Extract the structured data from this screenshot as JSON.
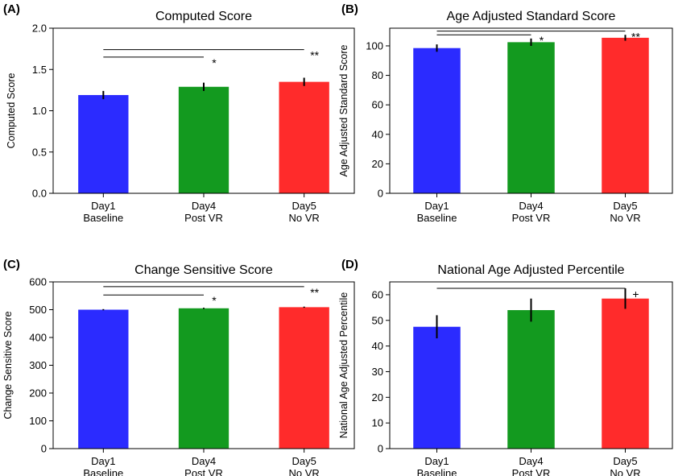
{
  "colors": {
    "bar1": "#2b2bff",
    "bar2": "#139a1f",
    "bar3": "#ff2b2b"
  },
  "chart_data": [
    {
      "type": "bar",
      "panel": "(A)",
      "title": "Computed Score",
      "ylabel": "Computed Score",
      "categories": [
        [
          "Day1",
          "Baseline"
        ],
        [
          "Day4",
          "Post VR"
        ],
        [
          "Day5",
          "No VR"
        ]
      ],
      "values": [
        1.19,
        1.29,
        1.35
      ],
      "errors": [
        0.05,
        0.05,
        0.05
      ],
      "ylim": [
        0,
        2.0
      ],
      "yticks": [
        "0.0",
        "0.5",
        "1.0",
        "1.5",
        "2.0"
      ],
      "significance": [
        {
          "from": 0,
          "to": 1,
          "y": 1.65,
          "label": "*"
        },
        {
          "from": 0,
          "to": 2,
          "y": 1.74,
          "label": "**"
        }
      ]
    },
    {
      "type": "bar",
      "panel": "(B)",
      "title": "Age Adjusted Standard Score",
      "ylabel": "Age Adjusted Standard Score",
      "categories": [
        [
          "Day1",
          "Baseline"
        ],
        [
          "Day4",
          "Post VR"
        ],
        [
          "Day5",
          "No VR"
        ]
      ],
      "values": [
        98.5,
        102.5,
        105.5
      ],
      "errors": [
        2.5,
        2.5,
        2.0
      ],
      "ylim": [
        0,
        112
      ],
      "yticks": [
        "0",
        "20",
        "40",
        "60",
        "80",
        "100"
      ],
      "significance": [
        {
          "from": 0,
          "to": 1,
          "y": 107.5,
          "label": "*"
        },
        {
          "from": 0,
          "to": 2,
          "y": 110,
          "label": "**"
        }
      ]
    },
    {
      "type": "bar",
      "panel": "(C)",
      "title": "Change Sensitive Score",
      "ylabel": "Change Sensitive Score",
      "categories": [
        [
          "Day1",
          "Baseline"
        ],
        [
          "Day4",
          "Post VR"
        ],
        [
          "Day5",
          "No VR"
        ]
      ],
      "values": [
        500,
        505,
        509
      ],
      "errors": [
        2,
        2,
        2
      ],
      "ylim": [
        0,
        600
      ],
      "yticks": [
        "0",
        "100",
        "200",
        "300",
        "400",
        "500",
        "600"
      ],
      "significance": [
        {
          "from": 0,
          "to": 1,
          "y": 553,
          "label": "*"
        },
        {
          "from": 0,
          "to": 2,
          "y": 583,
          "label": "**"
        }
      ]
    },
    {
      "type": "bar",
      "panel": "(D)",
      "title": "National Age Adjusted Percentile",
      "ylabel": "National Age Adjusted Percentile",
      "categories": [
        [
          "Day1",
          "Baseline"
        ],
        [
          "Day4",
          "Post VR"
        ],
        [
          "Day5",
          "No VR"
        ]
      ],
      "values": [
        47.5,
        54,
        58.5
      ],
      "errors": [
        4.5,
        4.5,
        4.0
      ],
      "ylim": [
        0,
        65
      ],
      "yticks": [
        "0",
        "10",
        "20",
        "30",
        "40",
        "50",
        "60"
      ],
      "significance": [
        {
          "from": 0,
          "to": 2,
          "y": 62.5,
          "label": "+"
        }
      ]
    }
  ]
}
